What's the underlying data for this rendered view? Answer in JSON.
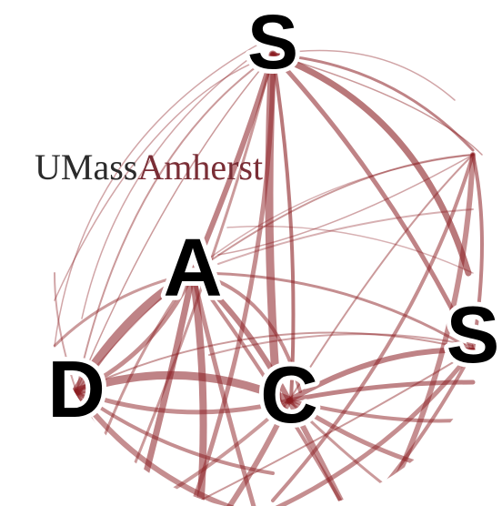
{
  "logo": {
    "part1": "UMass",
    "part2": "Amherst",
    "color_dark": "#2b2b2b",
    "color_maroon": "#7a2e36"
  },
  "nodes": [
    {
      "id": "node-s-top",
      "label": "S"
    },
    {
      "id": "node-a",
      "label": "A"
    },
    {
      "id": "node-d",
      "label": "D"
    },
    {
      "id": "node-c",
      "label": "C"
    },
    {
      "id": "node-s-right",
      "label": "S"
    }
  ],
  "colors": {
    "edge": "#8b1e22",
    "background": "#ffffff",
    "letters": "#000000"
  }
}
